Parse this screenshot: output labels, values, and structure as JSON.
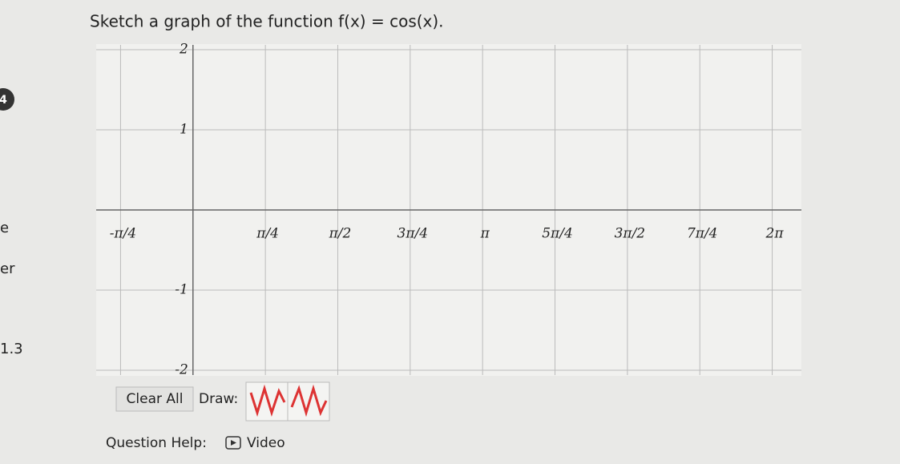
{
  "sidebar": {
    "badge": "4",
    "items": [
      "e",
      "er",
      "1.3"
    ]
  },
  "question": {
    "prompt": "Sketch a graph of the function f(x) = cos(x)."
  },
  "graph": {
    "xlim": [
      -1.05,
      6.6
    ],
    "ylim": [
      -2,
      2
    ],
    "xticks": [
      {
        "value": -0.7854,
        "label": "-π/4"
      },
      {
        "value": 0.7854,
        "label": "π/4"
      },
      {
        "value": 1.5708,
        "label": "π/2"
      },
      {
        "value": 2.3562,
        "label": "3π/4"
      },
      {
        "value": 3.1416,
        "label": "π"
      },
      {
        "value": 3.927,
        "label": "5π/4"
      },
      {
        "value": 4.7124,
        "label": "3π/2"
      },
      {
        "value": 5.4978,
        "label": "7π/4"
      },
      {
        "value": 6.2832,
        "label": "2π"
      }
    ],
    "yticks": [
      2,
      1,
      -1,
      -2
    ]
  },
  "toolbar": {
    "clear": "Clear All",
    "draw": "Draw:"
  },
  "help": {
    "label": "Question Help:",
    "video": "Video"
  }
}
